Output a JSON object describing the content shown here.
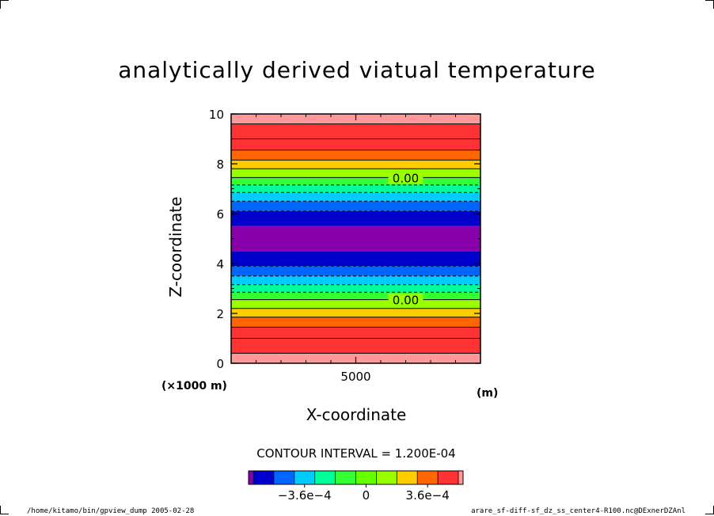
{
  "chart_data": {
    "type": "heatmap",
    "title": "analytically derived viatual temperature",
    "xlabel": "X-coordinate",
    "ylabel": "Z-coordinate",
    "x_unit": "(m)",
    "y_unit": "(×1000 m)",
    "xlim": [
      0,
      10000
    ],
    "ylim": [
      0,
      10
    ],
    "x_ticks": [
      "5000"
    ],
    "y_ticks": [
      "0",
      "2",
      "4",
      "6",
      "8",
      "10"
    ],
    "contour_interval": "CONTOUR INTERVAL = 1.200E-04",
    "contour_labels": [
      {
        "text": "0.00",
        "x": 7000,
        "y": 7.45
      },
      {
        "text": "0.00",
        "x": 7000,
        "y": 2.55
      }
    ],
    "bands": [
      {
        "z0": 0.0,
        "z1": 0.4,
        "color": "#ff9999"
      },
      {
        "z0": 0.4,
        "z1": 1.0,
        "color": "#ff3333"
      },
      {
        "z0": 1.0,
        "z1": 1.45,
        "color": "#ff3333"
      },
      {
        "z0": 1.45,
        "z1": 1.85,
        "color": "#ff6600"
      },
      {
        "z0": 1.85,
        "z1": 2.2,
        "color": "#ffcc00"
      },
      {
        "z0": 2.2,
        "z1": 2.55,
        "color": "#99ff00"
      },
      {
        "z0": 2.55,
        "z1": 2.85,
        "color": "#33ff33"
      },
      {
        "z0": 2.85,
        "z1": 3.15,
        "color": "#00ff99"
      },
      {
        "z0": 3.15,
        "z1": 3.5,
        "color": "#00ccff"
      },
      {
        "z0": 3.5,
        "z1": 3.9,
        "color": "#0066ff"
      },
      {
        "z0": 3.9,
        "z1": 4.5,
        "color": "#0000cc"
      },
      {
        "z0": 4.5,
        "z1": 5.5,
        "color": "#8800aa"
      },
      {
        "z0": 5.5,
        "z1": 6.1,
        "color": "#0000cc"
      },
      {
        "z0": 6.1,
        "z1": 6.5,
        "color": "#0066ff"
      },
      {
        "z0": 6.5,
        "z1": 6.85,
        "color": "#00ccff"
      },
      {
        "z0": 6.85,
        "z1": 7.15,
        "color": "#00ff99"
      },
      {
        "z0": 7.15,
        "z1": 7.45,
        "color": "#33ff33"
      },
      {
        "z0": 7.45,
        "z1": 7.8,
        "color": "#99ff00"
      },
      {
        "z0": 7.8,
        "z1": 8.15,
        "color": "#ffcc00"
      },
      {
        "z0": 8.15,
        "z1": 8.55,
        "color": "#ff6600"
      },
      {
        "z0": 8.55,
        "z1": 9.0,
        "color": "#ff3333"
      },
      {
        "z0": 9.0,
        "z1": 9.6,
        "color": "#ff3333"
      },
      {
        "z0": 9.6,
        "z1": 10.0,
        "color": "#ff9999"
      }
    ],
    "contours": [
      {
        "z": 0.4,
        "style": "solid"
      },
      {
        "z": 1.0,
        "style": "solid"
      },
      {
        "z": 1.45,
        "style": "solid"
      },
      {
        "z": 1.85,
        "style": "solid"
      },
      {
        "z": 2.2,
        "style": "solid"
      },
      {
        "z": 2.55,
        "style": "solid"
      },
      {
        "z": 2.85,
        "style": "dashed"
      },
      {
        "z": 3.15,
        "style": "dashed"
      },
      {
        "z": 3.5,
        "style": "dashed"
      },
      {
        "z": 3.9,
        "style": "dashed"
      },
      {
        "z": 6.1,
        "style": "dashed"
      },
      {
        "z": 6.5,
        "style": "dashed"
      },
      {
        "z": 6.85,
        "style": "dashed"
      },
      {
        "z": 7.15,
        "style": "dashed"
      },
      {
        "z": 7.45,
        "style": "solid"
      },
      {
        "z": 7.8,
        "style": "solid"
      },
      {
        "z": 8.15,
        "style": "solid"
      },
      {
        "z": 8.55,
        "style": "solid"
      },
      {
        "z": 9.0,
        "style": "solid"
      },
      {
        "z": 9.6,
        "style": "solid"
      }
    ],
    "colorbar": {
      "colors": [
        "#8800aa",
        "#0000cc",
        "#0066ff",
        "#00ccff",
        "#00ff99",
        "#33ff33",
        "#66ff00",
        "#99ff00",
        "#ffcc00",
        "#ff6600",
        "#ff3333",
        "#ff9999"
      ],
      "tick_labels": [
        {
          "text": "−3.6e−4",
          "index": 3
        },
        {
          "text": "0",
          "index": 6
        },
        {
          "text": "3.6e−4",
          "index": 9
        }
      ]
    }
  },
  "footer": {
    "left": "/home/kitamo/bin/gpview_dump  2005-02-28",
    "right": "arare_sf-diff-sf_dz_ss_center4-R100.nc@DExnerDZAnl"
  }
}
